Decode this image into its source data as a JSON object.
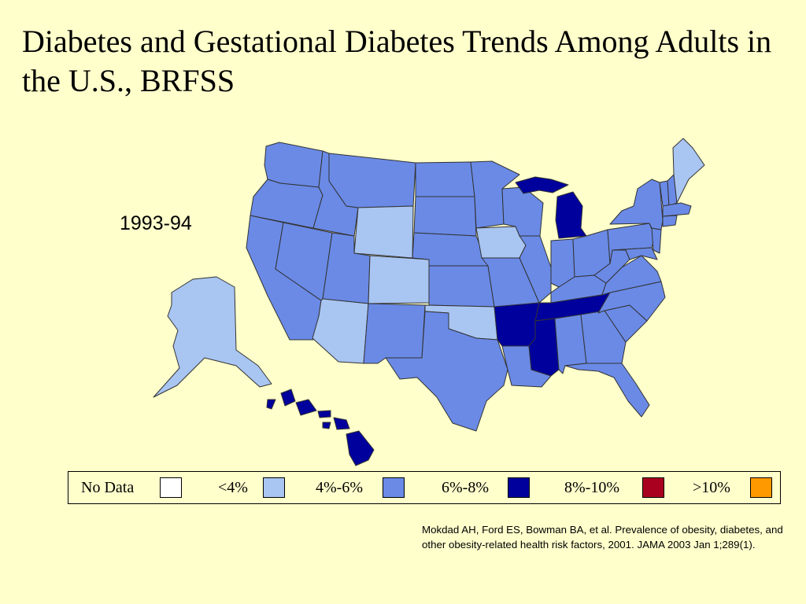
{
  "slide": {
    "title": "Diabetes and Gestational Diabetes Trends Among Adults in the U.S., BRFSS",
    "year": "1993-94",
    "citation": "Mokdad AH, Ford ES, Bowman BA, et al. Prevalence of obesity, diabetes, and other obesity-related health risk factors, 2001. JAMA 2003 Jan 1;289(1)."
  },
  "legend": [
    {
      "label": "No Data",
      "color": "#FFFFFF"
    },
    {
      "label": "<4%",
      "color": "#A9C5F2"
    },
    {
      "label": "4%-6%",
      "color": "#6A8AE6"
    },
    {
      "label": "6%-8%",
      "color": "#00009C"
    },
    {
      "label": "8%-10%",
      "color": "#A8001E"
    },
    {
      "label": ">10%",
      "color": "#FF9900"
    }
  ],
  "state_categories": {
    "<4%": [
      "Maine",
      "Wyoming",
      "Iowa",
      "Colorado",
      "Arizona",
      "Oklahoma",
      "Alaska"
    ],
    "4%-6%": [
      "Washington",
      "Oregon",
      "California",
      "Nevada",
      "Idaho",
      "Montana",
      "Utah",
      "New Mexico",
      "North Dakota",
      "South Dakota",
      "Nebraska",
      "Kansas",
      "Texas",
      "Minnesota",
      "Wisconsin",
      "Missouri",
      "Louisiana",
      "Illinois",
      "Indiana",
      "Ohio",
      "Kentucky",
      "Alabama",
      "Georgia",
      "Florida",
      "South Carolina",
      "North Carolina",
      "Virginia",
      "West Virginia",
      "Pennsylvania",
      "New York",
      "Vermont",
      "New Hampshire",
      "Massachusetts",
      "Connecticut",
      "Rhode Island",
      "New Jersey",
      "Delaware",
      "Maryland"
    ],
    "6%-8%": [
      "Michigan",
      "Arkansas",
      "Mississippi",
      "Tennessee",
      "Hawaii"
    ]
  }
}
